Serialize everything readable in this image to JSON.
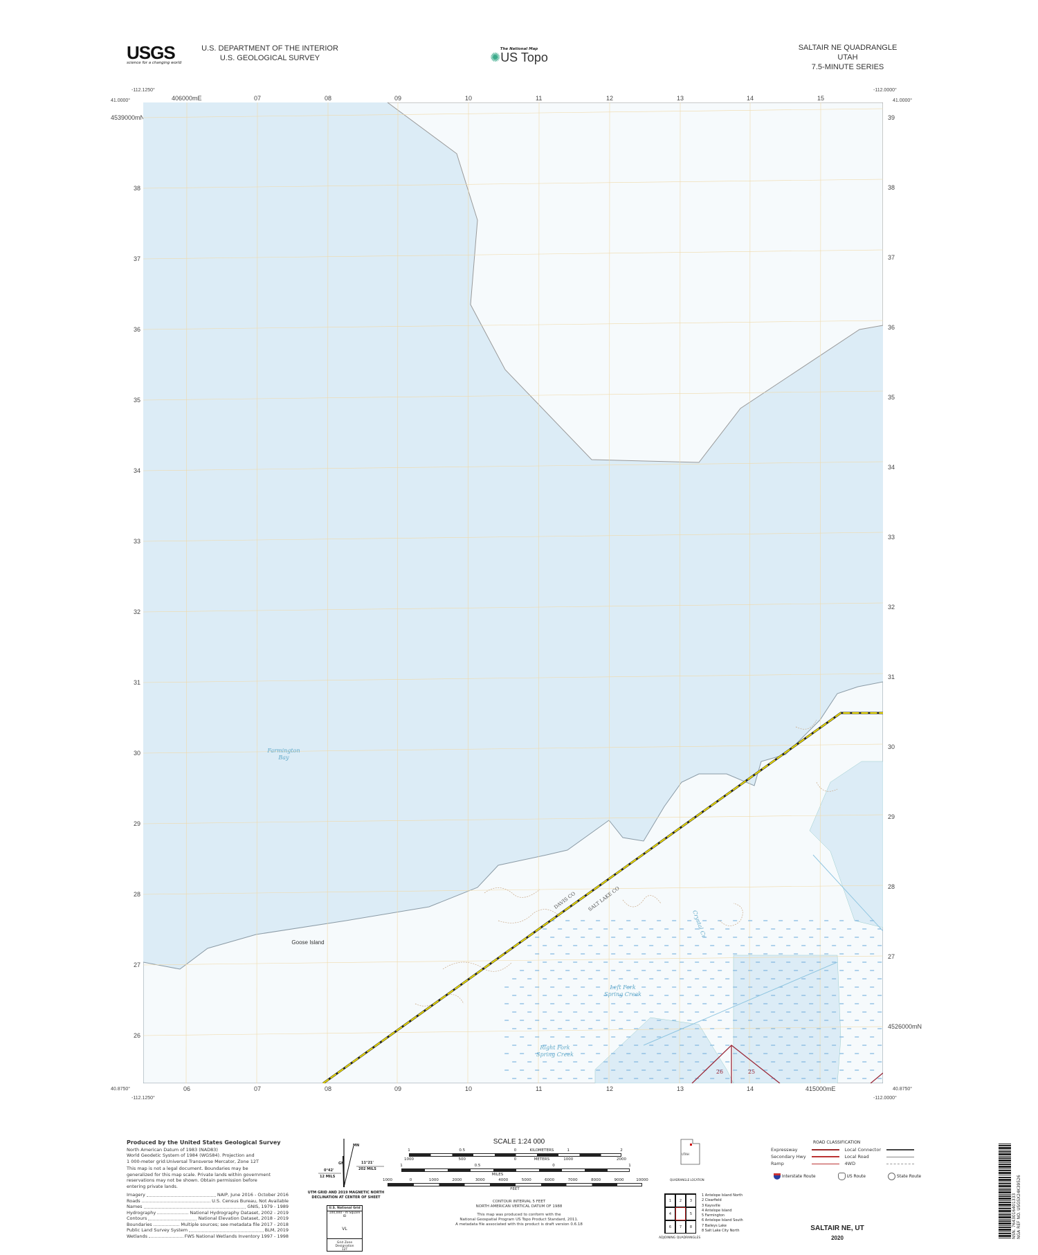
{
  "header": {
    "agency_line1": "U.S. DEPARTMENT OF THE INTERIOR",
    "agency_line2": "U.S. GEOLOGICAL SURVEY",
    "usgs_logo": "USGS",
    "usgs_tagline": "science for a changing world",
    "national_map": "The National Map",
    "us_topo": "US Topo",
    "quad_title": "SALTAIR NE QUADRANGLE",
    "state": "UTAH",
    "series": "7.5-MINUTE SERIES"
  },
  "corners": {
    "top_left_lon": "-112.1250°",
    "top_left_lat": "41.0000°",
    "top_right_lon": "-112.0000°",
    "top_right_lat": "41.0000°",
    "bottom_left_lat": "40.8750°",
    "bottom_left_lon": "-112.1250°",
    "bottom_right_lat": "40.8750°",
    "bottom_right_lon": "-112.0000°"
  },
  "grid": {
    "top_eastings": [
      "406000mE",
      "07",
      "08",
      "09",
      "10",
      "11",
      "12",
      "13",
      "14",
      "15"
    ],
    "bottom_eastings": [
      "06",
      "07",
      "08",
      "09",
      "10",
      "11",
      "12",
      "13",
      "14",
      "415000mE"
    ],
    "left_northings": [
      "4539000mN",
      "38",
      "37",
      "36",
      "35",
      "34",
      "33",
      "32",
      "31",
      "30",
      "29",
      "28",
      "27",
      "26"
    ],
    "right_northings": [
      "39",
      "38",
      "37",
      "36",
      "35",
      "34",
      "33",
      "32",
      "31",
      "30",
      "29",
      "28",
      "27",
      "4526000mN"
    ]
  },
  "map": {
    "colors": {
      "water": "#dceef8",
      "land": "#f7fbfd",
      "grid": "#f0d9a8",
      "county_line": "#e8d800",
      "section_line": "#9b2a3a",
      "contour": "#c9a887"
    },
    "labels": {
      "farmington_bay": [
        "Farmington",
        "Bay"
      ],
      "goose_island": "Goose Island",
      "left_fork": [
        "Left Fork",
        "Spring Creek"
      ],
      "right_fork": [
        "Right Fork",
        "Spring Creek"
      ],
      "crystal_cr": "Crystal Cr",
      "davis_co": "DAVIS CO",
      "salt_lake_co": "SALT LAKE CO",
      "section_26": "26",
      "section_25": "25"
    }
  },
  "footer": {
    "produced_by": "Produced by the United States Geological Survey",
    "datum_lines": [
      "North American Datum of 1983 (NAD83)",
      "World Geodetic System of 1984 (WGS84). Projection and",
      "1 000-meter grid:Universal Transverse Mercator, Zone 12T"
    ],
    "disclaimer": [
      "This map is not a legal document. Boundaries may be",
      "generalized for this map scale. Private lands within government",
      "reservations may not be shown. Obtain permission before",
      "entering private lands."
    ],
    "credits": [
      {
        "k": "Imagery",
        "v": "NAIP, June 2016 - October 2016"
      },
      {
        "k": "Roads",
        "v": "U.S. Census Bureau, Not Available"
      },
      {
        "k": "Names",
        "v": "GNIS, 1979 - 1989"
      },
      {
        "k": "Hydrography",
        "v": "National Hydrography Dataset, 2002 - 2019"
      },
      {
        "k": "Contours",
        "v": "National Elevation Dataset, 2018 - 2019"
      },
      {
        "k": "Boundaries",
        "v": "Multiple sources; see metadata file 2017 - 2018"
      },
      {
        "k": "Public Land Survey System",
        "v": "BLM, 2019"
      },
      {
        "k": "Wetlands",
        "v": "FWS National Wetlands Inventory 1997 - 1998"
      }
    ],
    "declination": {
      "mn": "MN",
      "gn": "GN",
      "grid_angle": "0°42'",
      "grid_mils": "12 MILS",
      "mag_angle": "11°21'",
      "mag_mils": "202 MILS",
      "caption1": "UTM GRID AND 2019 MAGNETIC NORTH",
      "caption2": "DECLINATION AT CENTER OF SHEET"
    },
    "usng": {
      "title": "U.S. National Grid",
      "sub": "100,000 - m Square ID",
      "id": "VL",
      "zone_label": "Grid Zone Designation",
      "zone": "12T"
    },
    "scale": {
      "title": "SCALE 1:24 000",
      "km_ticks": [
        "1",
        "0.5",
        "0",
        "1",
        "2"
      ],
      "km_label": "KILOMETERS",
      "m_ticks": [
        "1000",
        "500",
        "0",
        "1000",
        "2000"
      ],
      "m_label": "METERS",
      "mi_ticks": [
        "1",
        "0.5",
        "0",
        "1"
      ],
      "mi_label": "MILES",
      "ft_ticks": [
        "1000",
        "0",
        "1000",
        "2000",
        "3000",
        "4000",
        "5000",
        "6000",
        "7000",
        "8000",
        "9000",
        "10000"
      ],
      "ft_label": "FEET"
    },
    "contour_interval": "CONTOUR INTERVAL 5 FEET",
    "vertical_datum": "NORTH AMERICAN VERTICAL DATUM OF 1988",
    "conform": [
      "This map was produced to conform with the",
      "National Geospatial Program US Topo Product Standard, 2011.",
      "A metadata file associated with this product is draft version 0.6.18"
    ],
    "location": {
      "state": "UTAH",
      "caption": "QUADRANGLE LOCATION"
    },
    "adjoining": {
      "caption": "ADJOINING QUADRANGLES",
      "cells": [
        "1",
        "2",
        "3",
        "4",
        "",
        "5",
        "6",
        "7",
        "8"
      ],
      "names": [
        "1 Antelope Island North",
        "2 Clearfield",
        "3 Kaysville",
        "4 Antelope Island",
        "5 Farmington",
        "6 Antelope Island South",
        "7 Baileys Lake",
        "8 Salt Lake City North"
      ]
    },
    "roads": {
      "title": "ROAD CLASSIFICATION",
      "expressway": "Expressway",
      "secondary": "Secondary Hwy",
      "ramp": "Ramp",
      "local_connector": "Local Connector",
      "local_road": "Local Road",
      "fourwd": "4WD",
      "interstate": "Interstate Route",
      "us_route": "US Route",
      "state_route": "State Route"
    },
    "map_name": "SALTAIR NE, UT",
    "year": "2020",
    "barcode_text": "NSN. 7643016401333",
    "nga_ref": "NGA REF NO. USGSX24K39526"
  }
}
